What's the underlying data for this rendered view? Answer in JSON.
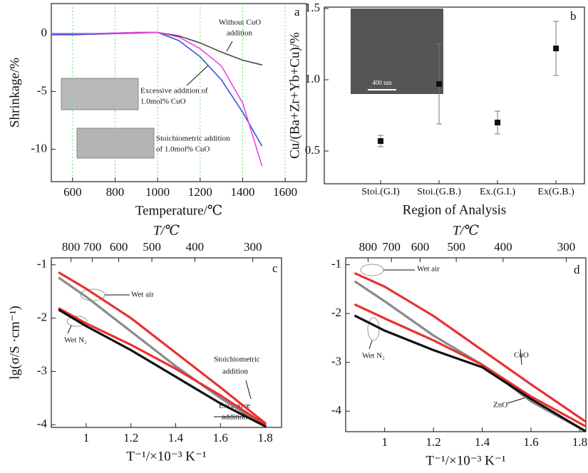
{
  "chart_data": [
    {
      "type": "line",
      "panel_label": "a",
      "xlabel": "Temperature/℃",
      "ylabel": "Shrinkage/%",
      "x": [
        500,
        600,
        700,
        800,
        900,
        1000,
        1100,
        1200,
        1300,
        1400,
        1490
      ],
      "series": [
        {
          "color": "#444444",
          "values": [
            0,
            0,
            0,
            0.05,
            0.1,
            0.1,
            -0.2,
            -0.8,
            -1.6,
            -2.3,
            -2.7
          ]
        },
        {
          "color": "#3355dd",
          "values": [
            -0.1,
            -0.1,
            -0.05,
            0,
            0.05,
            0.1,
            -0.6,
            -2.0,
            -4.0,
            -6.8,
            -9.7
          ]
        },
        {
          "color": "#ee44dd",
          "values": [
            0,
            0,
            0,
            0.05,
            0.1,
            0.1,
            -0.3,
            -1.3,
            -2.8,
            -6.0,
            -11.4
          ]
        }
      ],
      "xlim": [
        500,
        1700
      ],
      "ylim": [
        -12.8,
        2.6
      ],
      "xticks": [
        600,
        800,
        1000,
        1200,
        1400,
        1600
      ],
      "yticks": [
        0,
        -5,
        -10
      ],
      "grid": "x",
      "grid_color": "#66dd66",
      "annotations": [
        "Without CuO",
        "addition",
        "Excessive addition of",
        "1.0mol% CuO",
        "Stoichiometric addition",
        "of 1.0mol% CuO"
      ]
    },
    {
      "type": "errorbar",
      "panel_label": "b",
      "xlabel": "Region of Analysis",
      "ylabel": "Cu/(Ba+Zr+Yb+Cu)/%",
      "categories": [
        "Stoi.(G.I)",
        "Stoi.(G.B.)",
        "Ex.(G.I.)",
        "Ex(G.B.)"
      ],
      "values": [
        0.57,
        0.97,
        0.7,
        1.22
      ],
      "errors": [
        0.04,
        0.28,
        0.08,
        0.19
      ],
      "color": "#111111",
      "ylim": [
        0.27,
        1.51
      ],
      "yticks": [
        0.5,
        {
          "value": 1,
          "label": "1.0"
        },
        1.5
      ],
      "inset_label": "400 nm"
    },
    {
      "type": "line",
      "panel_label": "c",
      "x2label": "T/℃",
      "ylabel": "lg(σ/S ·cm⁻¹)",
      "xlabel": "T⁻¹/×10⁻³ K⁻¹",
      "x": [
        0.88,
        1.0,
        1.2,
        1.4,
        1.6,
        1.8
      ],
      "series": [
        {
          "color": "#e8322f",
          "values": [
            -1.15,
            -1.45,
            -2.0,
            -2.65,
            -3.3,
            -3.97
          ]
        },
        {
          "color": "#8a8a8a",
          "values": [
            -1.25,
            -1.6,
            -2.25,
            -2.9,
            -3.5,
            -4.03
          ]
        },
        {
          "color": "#e8322f",
          "values": [
            -1.82,
            -2.1,
            -2.5,
            -2.95,
            -3.45,
            -4.0
          ]
        },
        {
          "color": "#111111",
          "values": [
            -1.85,
            -2.15,
            -2.6,
            -3.1,
            -3.6,
            -4.03
          ]
        }
      ],
      "xlim": [
        0.844,
        1.873
      ],
      "ylim": [
        -4.05,
        -0.87
      ],
      "xticks": [
        1,
        1.2,
        1.4,
        1.6,
        1.8
      ],
      "yticks": [
        -1,
        -2,
        -3,
        -4
      ],
      "x2ticks": [
        800,
        700,
        600,
        500,
        400,
        300
      ],
      "annotations": [
        "Wet air",
        "Wet N₂",
        "Stoichiometric",
        "addition",
        "Excessive",
        "addition"
      ]
    },
    {
      "type": "line",
      "panel_label": "d",
      "x2label": "T/℃",
      "xlabel": "T⁻¹/×10⁻³ K⁻¹",
      "x": [
        0.88,
        1.0,
        1.2,
        1.4,
        1.6,
        1.82
      ],
      "series": [
        {
          "color": "#e8322f",
          "values": [
            -1.18,
            -1.45,
            -2.05,
            -2.75,
            -3.45,
            -4.2
          ]
        },
        {
          "color": "#8a8a8a",
          "values": [
            -1.35,
            -1.75,
            -2.45,
            -3.05,
            -3.8,
            -4.4
          ]
        },
        {
          "color": "#e8322f",
          "values": [
            -1.82,
            -2.1,
            -2.55,
            -3.05,
            -3.7,
            -4.3
          ]
        },
        {
          "color": "#111111",
          "values": [
            -2.05,
            -2.35,
            -2.75,
            -3.1,
            -3.75,
            -4.4
          ]
        }
      ],
      "xlim": [
        0.84,
        1.825
      ],
      "ylim": [
        -4.42,
        -0.86
      ],
      "xticks": [
        1,
        1.2,
        1.4,
        1.6,
        1.8
      ],
      "yticks": [
        -1,
        -2,
        -3,
        -4
      ],
      "x2ticks": [
        800,
        700,
        600,
        500,
        400,
        300
      ],
      "annotations": [
        "Wet air",
        "Wet N₂",
        "CuO",
        "ZnO"
      ]
    }
  ]
}
